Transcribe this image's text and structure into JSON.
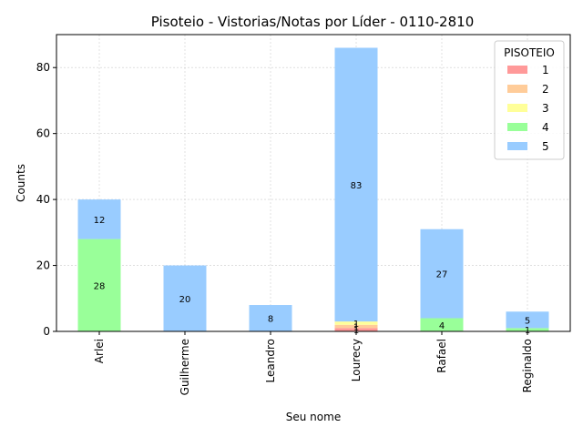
{
  "chart_data": {
    "type": "bar",
    "stacked": true,
    "title": "Pisoteio - Vistorias/Notas por Líder - 0110-2810",
    "xlabel": "Seu nome",
    "ylabel": "Counts",
    "categories": [
      "Arlei",
      "Guilherme",
      "Leandro",
      "Lourecy",
      "Rafael",
      "Reginaldo"
    ],
    "ylim": [
      0,
      90
    ],
    "yticks": [
      0,
      20,
      40,
      60,
      80
    ],
    "grid": true,
    "legend": {
      "title": "PISOTEIO",
      "placement": "top-right"
    },
    "series": [
      {
        "name": "1",
        "color": "#ff9999",
        "values": [
          0,
          0,
          0,
          1,
          0,
          0
        ]
      },
      {
        "name": "2",
        "color": "#ffcc99",
        "values": [
          0,
          0,
          0,
          1,
          0,
          0
        ]
      },
      {
        "name": "3",
        "color": "#ffff99",
        "values": [
          0,
          0,
          0,
          1,
          0,
          0
        ]
      },
      {
        "name": "4",
        "color": "#99ff99",
        "values": [
          28,
          0,
          0,
          0,
          4,
          1
        ]
      },
      {
        "name": "5",
        "color": "#99ccff",
        "values": [
          12,
          20,
          8,
          83,
          27,
          5
        ]
      }
    ]
  }
}
